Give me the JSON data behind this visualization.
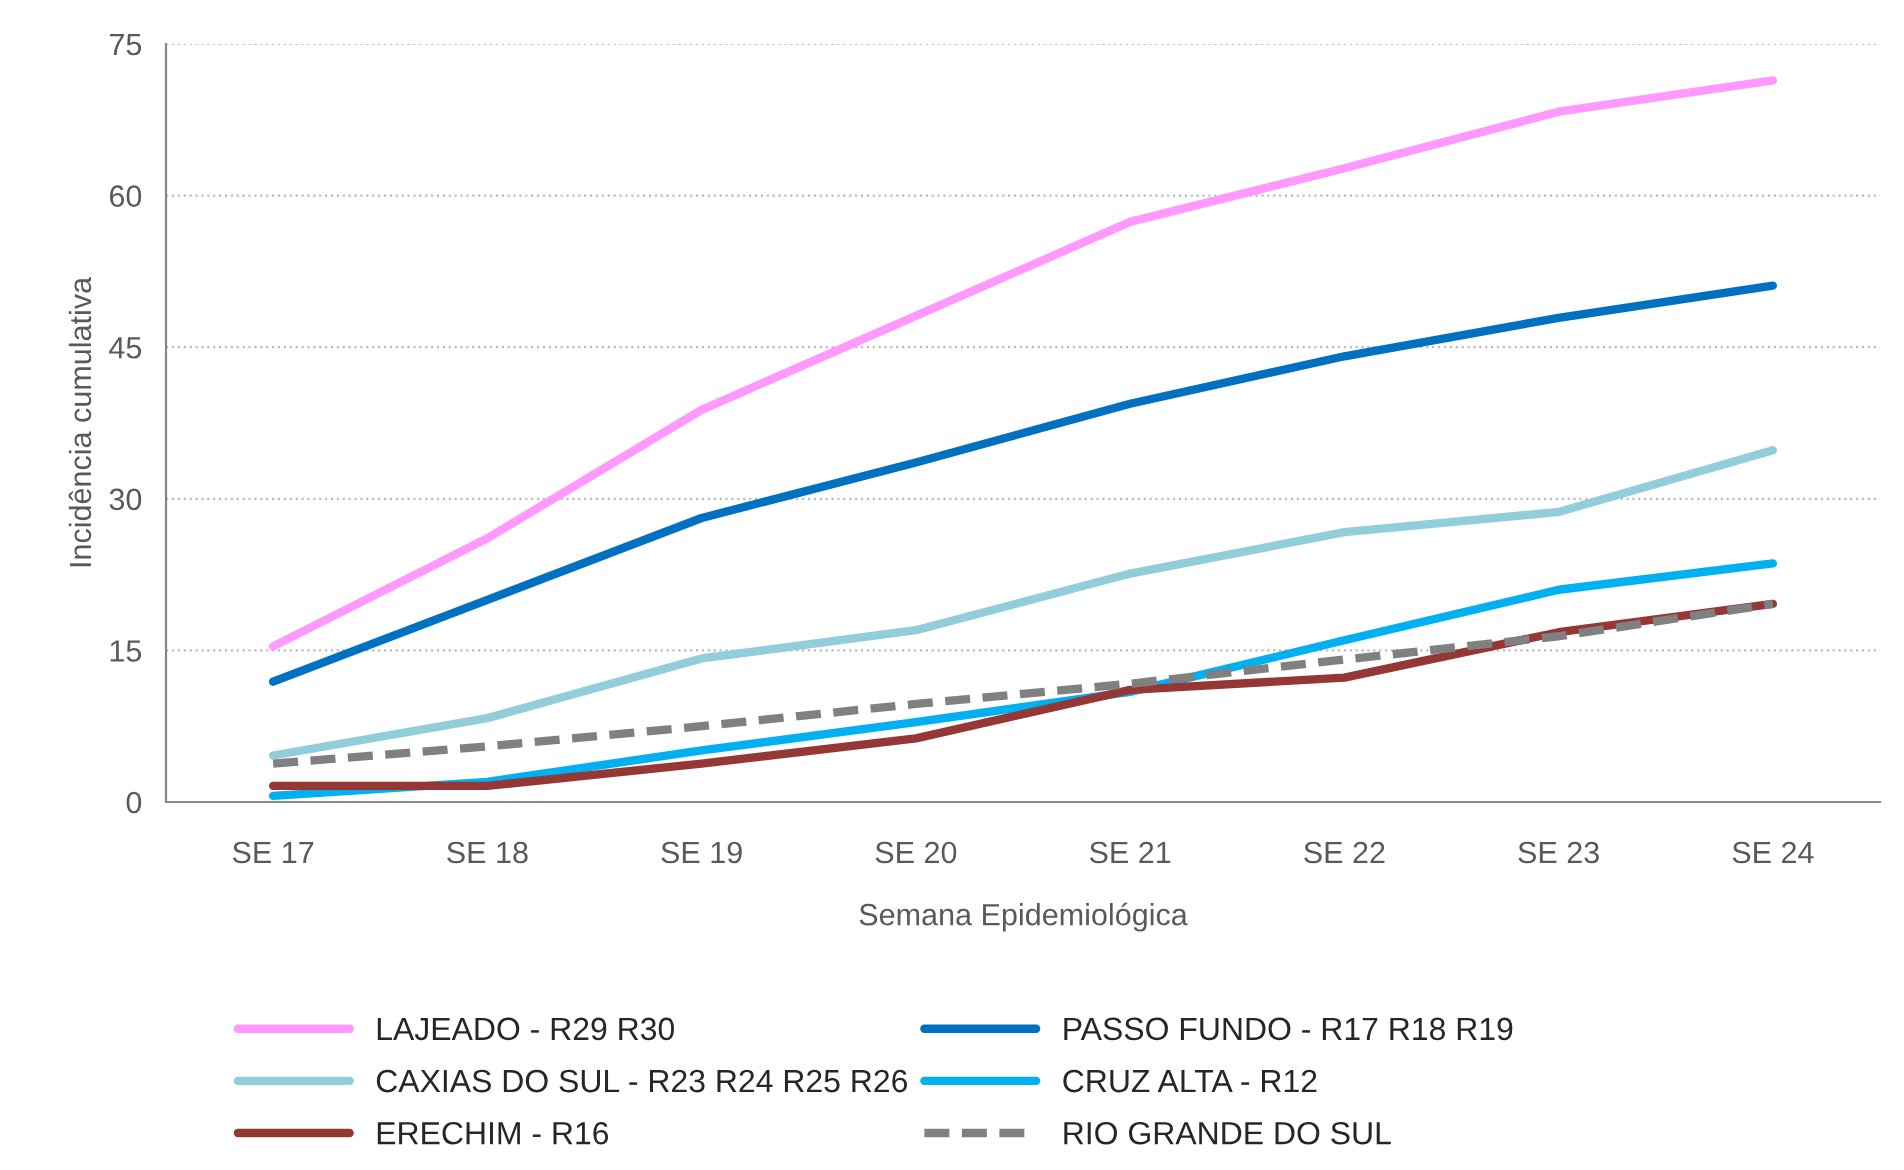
{
  "chart_data": {
    "type": "line",
    "xlabel": "Semana Epidemiológica",
    "ylabel": "Incidência cumulativa",
    "categories": [
      "SE 17",
      "SE 18",
      "SE 19",
      "SE 20",
      "SE 21",
      "SE 22",
      "SE 23",
      "SE 24"
    ],
    "ylim": [
      0,
      75
    ],
    "yticks": [
      0,
      15,
      30,
      45,
      60,
      75
    ],
    "grid": "y",
    "legend": "bottom",
    "marker": "none",
    "series": [
      {
        "name": "LAJEADO - R29 R30",
        "color": "#ff99ff",
        "line_style": "solid",
        "values": [
          15.4,
          26.1,
          38.8,
          48.1,
          57.4,
          62.7,
          68.3,
          71.4
        ]
      },
      {
        "name": "PASSO FUNDO - R17 R18 R19",
        "color": "#0070c0",
        "line_style": "solid",
        "values": [
          11.9,
          20.0,
          28.1,
          33.6,
          39.4,
          44.1,
          47.9,
          51.1
        ]
      },
      {
        "name": "CAXIAS DO SUL - R23 R24 R25 R26",
        "color": "#92cddc",
        "line_style": "solid",
        "values": [
          4.6,
          8.3,
          14.2,
          17.0,
          22.6,
          26.7,
          28.7,
          34.8
        ]
      },
      {
        "name": "CRUZ ALTA - R12",
        "color": "#00b0f0",
        "line_style": "solid",
        "values": [
          0.6,
          2.0,
          5.1,
          7.9,
          10.9,
          16.0,
          21.0,
          23.6
        ]
      },
      {
        "name": "ERECHIM - R16",
        "color": "#953735",
        "line_style": "solid",
        "values": [
          1.6,
          1.6,
          3.8,
          6.3,
          11.1,
          12.3,
          16.8,
          19.6
        ]
      },
      {
        "name": "RIO GRANDE DO SUL",
        "color": "#808080",
        "line_style": "dashed",
        "values": [
          3.8,
          5.5,
          7.5,
          9.7,
          11.7,
          14.1,
          16.4,
          19.6
        ]
      }
    ]
  }
}
